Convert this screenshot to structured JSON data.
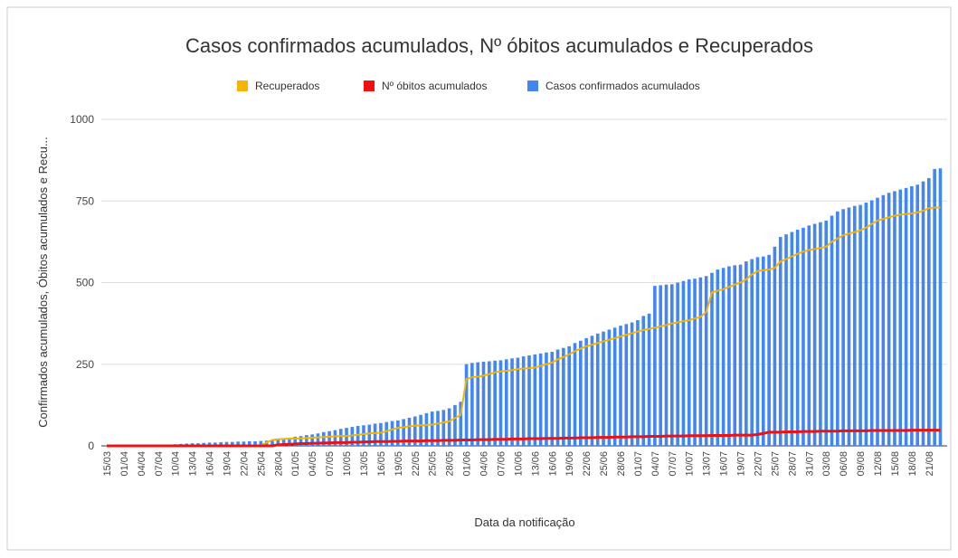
{
  "chart_data": {
    "type": "combo",
    "title": "Casos confirmados acumulados, Nº óbitos acumulados e Recuperados",
    "x_label": "Data da notificação",
    "y_label": "Confirmados acumulados, Óbitos acumulados e Recu...",
    "categories": [
      "15/03",
      null,
      null,
      "01/04",
      null,
      null,
      "04/04",
      null,
      null,
      "07/04",
      null,
      null,
      "10/04",
      null,
      null,
      "13/04",
      null,
      null,
      "16/04",
      null,
      null,
      "19/04",
      null,
      null,
      "22/04",
      null,
      null,
      "25/04",
      null,
      null,
      "28/04",
      null,
      null,
      "01/05",
      null,
      null,
      "04/05",
      null,
      null,
      "07/05",
      null,
      null,
      "10/05",
      null,
      null,
      "13/05",
      null,
      null,
      "16/05",
      null,
      null,
      "19/05",
      null,
      null,
      "22/05",
      null,
      null,
      "25/05",
      null,
      null,
      "28/05",
      null,
      null,
      "01/06",
      null,
      null,
      "04/06",
      null,
      null,
      "07/06",
      null,
      null,
      "10/06",
      null,
      null,
      "13/06",
      null,
      null,
      "16/06",
      null,
      null,
      "19/06",
      null,
      null,
      "22/06",
      null,
      null,
      "25/06",
      null,
      null,
      "28/06",
      null,
      null,
      "01/07",
      null,
      null,
      "04/07",
      null,
      null,
      "07/07",
      null,
      null,
      "10/07",
      null,
      null,
      "13/07",
      null,
      null,
      "16/07",
      null,
      null,
      "19/07",
      null,
      null,
      "22/07",
      null,
      null,
      "25/07",
      null,
      null,
      "28/07",
      null,
      null,
      "31/07",
      null,
      null,
      "03/08",
      null,
      null,
      "06/08",
      null,
      null,
      "09/08",
      null,
      null,
      "12/08",
      null,
      null,
      "15/08",
      null,
      null,
      "18/08",
      null,
      null,
      "21/08",
      null,
      null
    ],
    "series": [
      {
        "name": "Recuperados",
        "color": "#f4b400",
        "kind": "line",
        "values": [
          0,
          0,
          0,
          0,
          0,
          0,
          0,
          0,
          0,
          0,
          0,
          0,
          0,
          0,
          0,
          0,
          0,
          0,
          0,
          0,
          0,
          0,
          0,
          0,
          0,
          0,
          0,
          2,
          10,
          18,
          20,
          21,
          22,
          22,
          23,
          24,
          25,
          26,
          27,
          28,
          29,
          30,
          30,
          32,
          34,
          36,
          38,
          39,
          40,
          45,
          50,
          55,
          57,
          60,
          62,
          63,
          64,
          65,
          68,
          72,
          75,
          85,
          95,
          205,
          210,
          212,
          215,
          220,
          225,
          228,
          230,
          232,
          235,
          237,
          238,
          240,
          245,
          250,
          255,
          265,
          272,
          280,
          290,
          298,
          305,
          310,
          315,
          320,
          325,
          330,
          335,
          340,
          345,
          350,
          355,
          358,
          362,
          366,
          370,
          375,
          378,
          382,
          385,
          390,
          395,
          410,
          470,
          475,
          480,
          487,
          494,
          500,
          510,
          525,
          535,
          538,
          540,
          545,
          565,
          572,
          580,
          588,
          595,
          600,
          603,
          606,
          610,
          625,
          635,
          645,
          650,
          655,
          660,
          668,
          680,
          690,
          695,
          700,
          705,
          708,
          710,
          712,
          715,
          720,
          728,
          730,
          730
        ]
      },
      {
        "name": "Nº óbitos acumulados",
        "color": "#ee1111",
        "kind": "line",
        "values": [
          0,
          0,
          0,
          0,
          0,
          0,
          0,
          0,
          0,
          0,
          0,
          0,
          0,
          0,
          0,
          0,
          0,
          0,
          0,
          0,
          0,
          0,
          0,
          0,
          0,
          0,
          0,
          0,
          0,
          0,
          3,
          4,
          5,
          6,
          7,
          7,
          8,
          8,
          9,
          9,
          10,
          10,
          10,
          11,
          11,
          12,
          12,
          13,
          13,
          13,
          14,
          14,
          15,
          15,
          15,
          15,
          16,
          16,
          16,
          17,
          17,
          17,
          18,
          18,
          18,
          19,
          19,
          19,
          20,
          20,
          20,
          21,
          21,
          21,
          22,
          22,
          22,
          23,
          23,
          23,
          24,
          24,
          24,
          25,
          25,
          25,
          26,
          26,
          26,
          27,
          27,
          27,
          28,
          28,
          28,
          29,
          29,
          29,
          30,
          30,
          30,
          30,
          31,
          31,
          31,
          31,
          32,
          32,
          32,
          32,
          33,
          33,
          33,
          33,
          35,
          38,
          42,
          42,
          42,
          43,
          43,
          43,
          44,
          44,
          44,
          45,
          45,
          45,
          45,
          46,
          46,
          46,
          46,
          46,
          47,
          47,
          47,
          47,
          47,
          47,
          47,
          48,
          48,
          48,
          48,
          48,
          48
        ]
      },
      {
        "name": "Casos confirmados acumulados",
        "color": "#4285f4",
        "kind": "bar",
        "values": [
          1,
          1,
          1,
          2,
          2,
          2,
          2,
          2,
          3,
          3,
          3,
          4,
          5,
          6,
          7,
          8,
          8,
          9,
          10,
          10,
          11,
          12,
          12,
          13,
          13,
          14,
          14,
          15,
          16,
          18,
          20,
          23,
          25,
          28,
          30,
          33,
          35,
          38,
          42,
          45,
          48,
          52,
          55,
          58,
          61,
          63,
          65,
          68,
          70,
          73,
          76,
          78,
          82,
          86,
          90,
          95,
          100,
          105,
          107,
          110,
          115,
          125,
          135,
          250,
          254,
          256,
          258,
          259,
          261,
          262,
          265,
          268,
          270,
          274,
          277,
          280,
          283,
          286,
          288,
          295,
          300,
          305,
          315,
          322,
          330,
          337,
          344,
          350,
          356,
          362,
          368,
          373,
          378,
          385,
          398,
          405,
          490,
          492,
          494,
          495,
          500,
          505,
          510,
          512,
          516,
          520,
          530,
          540,
          545,
          550,
          553,
          555,
          565,
          572,
          578,
          580,
          585,
          610,
          640,
          648,
          655,
          662,
          668,
          675,
          680,
          685,
          690,
          705,
          718,
          725,
          730,
          735,
          738,
          745,
          752,
          760,
          768,
          775,
          780,
          785,
          790,
          795,
          800,
          810,
          820,
          848,
          850
        ]
      }
    ],
    "ylim": [
      0,
      1000
    ],
    "yticks": [
      0,
      250,
      500,
      750,
      1000
    ],
    "grid": true
  }
}
